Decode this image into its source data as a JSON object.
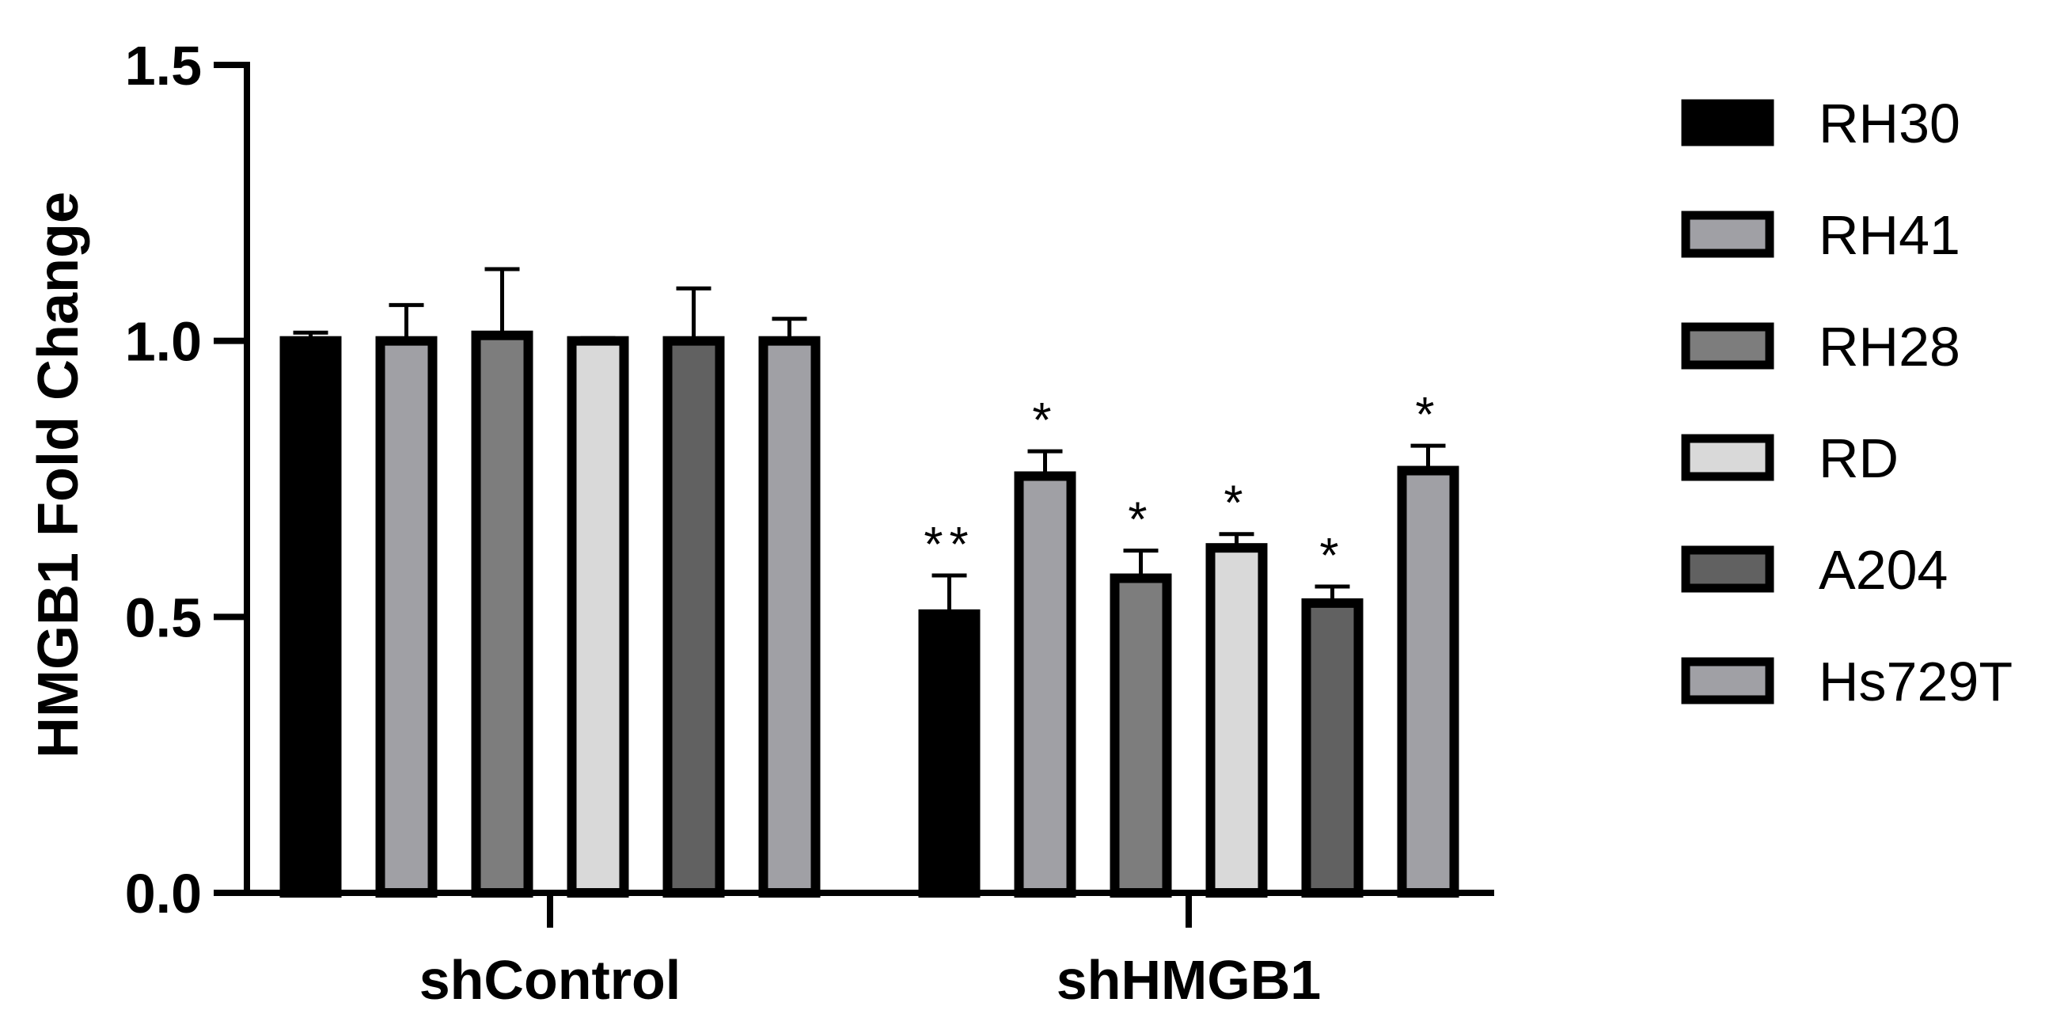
{
  "chart_data": {
    "type": "bar",
    "title": "",
    "xlabel": "",
    "ylabel": "HMGB1 Fold Change",
    "ylim": [
      0,
      1.5
    ],
    "yticks": [
      "0.0",
      "0.5",
      "1.0",
      "1.5"
    ],
    "categories": [
      "shControl",
      "shHMGB1"
    ],
    "legend_position": "right",
    "grid": false,
    "series": [
      {
        "name": "RH30",
        "color": "#000000",
        "values": [
          1.0,
          0.505
        ],
        "errors": [
          0.015,
          0.07
        ],
        "significance": [
          "",
          "**"
        ]
      },
      {
        "name": "RH41",
        "color": "#a0a0a5",
        "values": [
          1.0,
          0.755
        ],
        "errors": [
          0.065,
          0.045
        ],
        "significance": [
          "",
          "*"
        ]
      },
      {
        "name": "RH28",
        "color": "#7d7d7d",
        "values": [
          1.01,
          0.57
        ],
        "errors": [
          0.12,
          0.05
        ],
        "significance": [
          "",
          "*"
        ]
      },
      {
        "name": "RD",
        "color": "#d9d9d9",
        "values": [
          1.0,
          0.625
        ],
        "errors": [
          0.005,
          0.025
        ],
        "significance": [
          "",
          "*"
        ]
      },
      {
        "name": "A204",
        "color": "#616161",
        "values": [
          1.0,
          0.525
        ],
        "errors": [
          0.095,
          0.03
        ],
        "significance": [
          "",
          "*"
        ]
      },
      {
        "name": "Hs729T",
        "color": "#a0a0a5",
        "values": [
          1.0,
          0.765
        ],
        "errors": [
          0.04,
          0.045
        ],
        "significance": [
          "",
          "*"
        ]
      }
    ]
  }
}
